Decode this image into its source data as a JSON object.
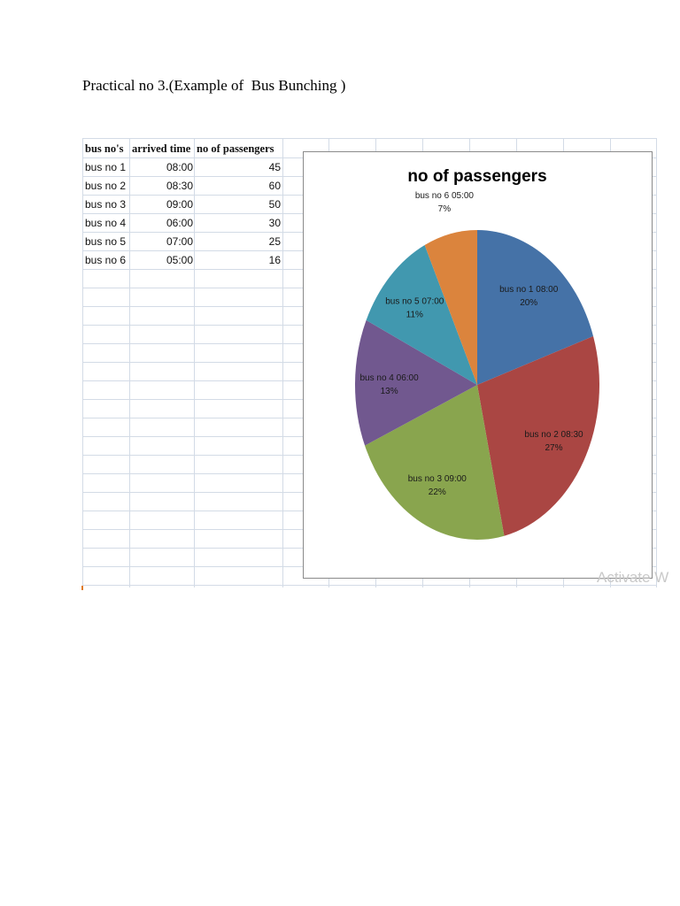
{
  "document": {
    "title": "Practical no 3.(Example of  Bus Bunching )"
  },
  "table": {
    "headers": [
      "bus no's",
      "arrived time",
      "no of passengers"
    ],
    "rows": [
      [
        "bus no 1",
        "08:00",
        "45"
      ],
      [
        "bus no 2",
        "08:30",
        "60"
      ],
      [
        "bus no 3",
        "09:00",
        "50"
      ],
      [
        "bus no 4",
        "06:00",
        "30"
      ],
      [
        "bus no 5",
        "07:00",
        "25"
      ],
      [
        "bus no 6",
        "05:00",
        "16"
      ]
    ]
  },
  "chart_data": {
    "type": "pie",
    "title": "no of passengers",
    "categories": [
      "bus no 1 08:00",
      "bus no 2 08:30",
      "bus no 3 09:00",
      "bus no 4 06:00",
      "bus no 5 07:00",
      "bus no 6 05:00"
    ],
    "values": [
      45,
      60,
      50,
      30,
      25,
      16
    ],
    "percent_labels": [
      "20%",
      "27%",
      "22%",
      "13%",
      "11%",
      "7%"
    ],
    "colors": [
      "#4572a7",
      "#aa4643",
      "#89a54e",
      "#71588f",
      "#4198af",
      "#db843d"
    ],
    "legend": "none",
    "data_labels": "category and percentage"
  },
  "watermark": "Activate W"
}
